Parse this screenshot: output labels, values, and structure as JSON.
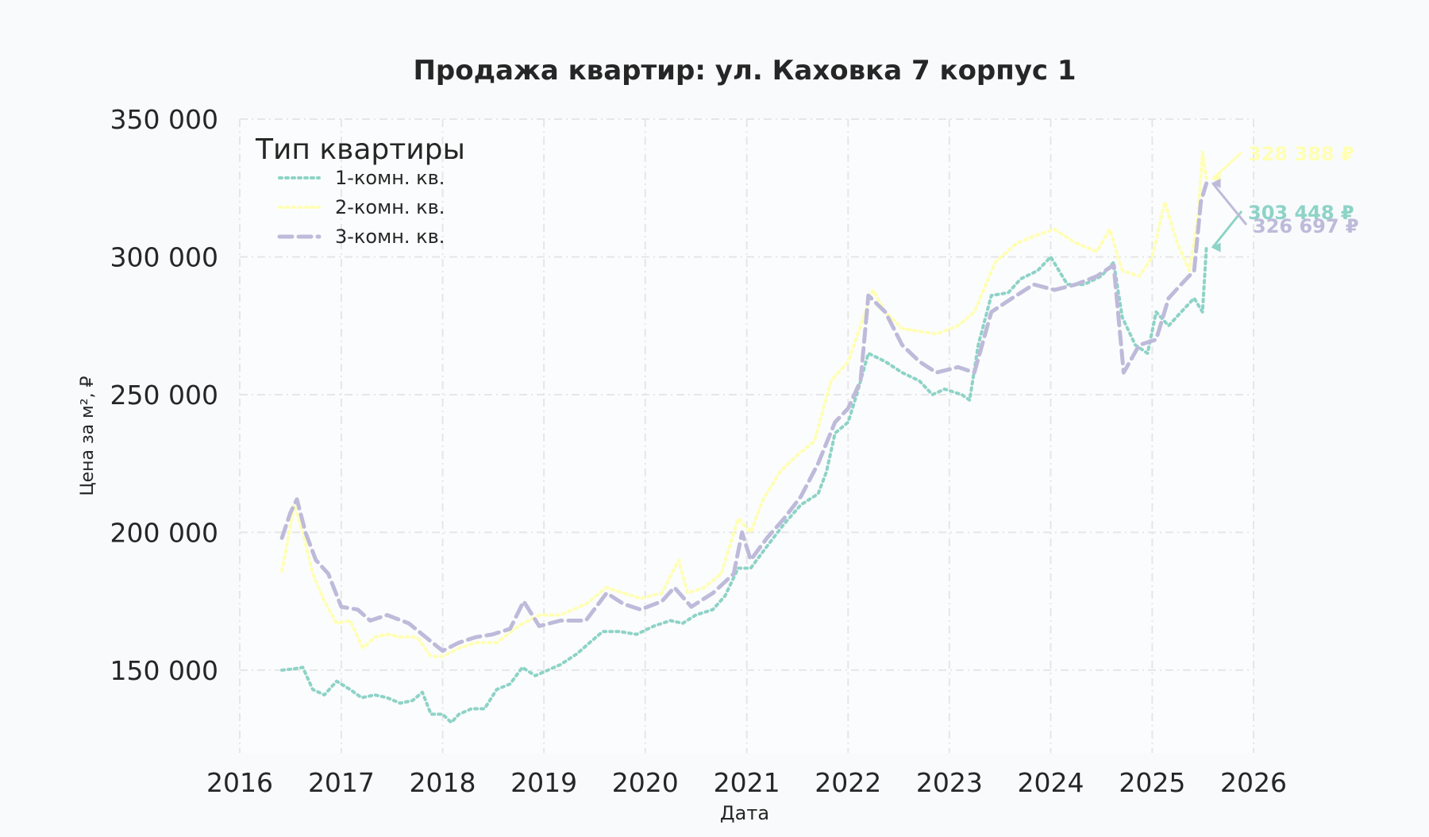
{
  "chart_data": {
    "type": "line",
    "title": "Продажа квартир: ул. Каховка 7 корпус 1",
    "xlabel": "Дата",
    "ylabel": "Цена за м², ₽",
    "xlim": [
      "2016-01-01",
      "2026-01-01"
    ],
    "ylim": [
      120000,
      350000
    ],
    "x_ticks": [
      "2016",
      "2017",
      "2018",
      "2019",
      "2020",
      "2021",
      "2022",
      "2023",
      "2024",
      "2025",
      "2026"
    ],
    "y_ticks": [
      150000,
      200000,
      250000,
      300000,
      350000
    ],
    "y_tick_labels": [
      "150 000",
      "200 000",
      "250 000",
      "300 000",
      "350 000"
    ],
    "grid": true,
    "legend": {
      "title": "Тип квартиры",
      "placement": "top-left"
    },
    "series": [
      {
        "name": "1-комн. кв.",
        "color": "#8dd3c7",
        "dash": "dotted",
        "end_label": "303 448 ₽",
        "points": [
          [
            "2016-06-01",
            150000
          ],
          [
            "2016-07-15",
            150500
          ],
          [
            "2016-08-15",
            151000
          ],
          [
            "2016-09-20",
            143000
          ],
          [
            "2016-11-01",
            141000
          ],
          [
            "2016-12-15",
            146000
          ],
          [
            "2017-02-01",
            143000
          ],
          [
            "2017-03-15",
            140000
          ],
          [
            "2017-05-01",
            141000
          ],
          [
            "2017-06-15",
            140000
          ],
          [
            "2017-08-01",
            138000
          ],
          [
            "2017-09-15",
            139000
          ],
          [
            "2017-10-20",
            142000
          ],
          [
            "2017-11-20",
            134000
          ],
          [
            "2018-01-01",
            134000
          ],
          [
            "2018-02-01",
            131000
          ],
          [
            "2018-03-01",
            134000
          ],
          [
            "2018-04-15",
            136000
          ],
          [
            "2018-06-01",
            136000
          ],
          [
            "2018-07-15",
            143000
          ],
          [
            "2018-09-01",
            145000
          ],
          [
            "2018-10-15",
            151000
          ],
          [
            "2018-12-01",
            148000
          ],
          [
            "2019-01-15",
            150000
          ],
          [
            "2019-03-01",
            152000
          ],
          [
            "2019-05-01",
            156000
          ],
          [
            "2019-06-15",
            160000
          ],
          [
            "2019-08-01",
            164000
          ],
          [
            "2019-10-01",
            164000
          ],
          [
            "2019-12-01",
            163000
          ],
          [
            "2020-02-01",
            166000
          ],
          [
            "2020-04-01",
            168000
          ],
          [
            "2020-05-15",
            167000
          ],
          [
            "2020-07-01",
            170000
          ],
          [
            "2020-09-01",
            172000
          ],
          [
            "2020-10-15",
            177000
          ],
          [
            "2020-12-01",
            187000
          ],
          [
            "2021-01-15",
            187000
          ],
          [
            "2021-03-15",
            195000
          ],
          [
            "2021-05-15",
            203000
          ],
          [
            "2021-07-15",
            210000
          ],
          [
            "2021-09-15",
            214000
          ],
          [
            "2021-10-15",
            222000
          ],
          [
            "2021-11-15",
            236000
          ],
          [
            "2022-01-01",
            240000
          ],
          [
            "2022-02-01",
            250000
          ],
          [
            "2022-03-15",
            265000
          ],
          [
            "2022-05-15",
            262000
          ],
          [
            "2022-07-15",
            258000
          ],
          [
            "2022-09-15",
            255000
          ],
          [
            "2022-11-01",
            250000
          ],
          [
            "2022-12-15",
            252000
          ],
          [
            "2023-02-15",
            250000
          ],
          [
            "2023-03-15",
            248000
          ],
          [
            "2023-04-15",
            268000
          ],
          [
            "2023-06-01",
            286000
          ],
          [
            "2023-08-01",
            287000
          ],
          [
            "2023-09-15",
            292000
          ],
          [
            "2023-11-15",
            295000
          ],
          [
            "2024-01-01",
            300000
          ],
          [
            "2024-03-01",
            290000
          ],
          [
            "2024-05-01",
            290000
          ],
          [
            "2024-07-01",
            293000
          ],
          [
            "2024-08-15",
            298000
          ],
          [
            "2024-09-15",
            278000
          ],
          [
            "2024-11-01",
            268000
          ],
          [
            "2024-12-15",
            265000
          ],
          [
            "2025-01-15",
            280000
          ],
          [
            "2025-03-01",
            275000
          ],
          [
            "2025-04-15",
            280000
          ],
          [
            "2025-06-01",
            285000
          ],
          [
            "2025-07-01",
            280000
          ],
          [
            "2025-07-15",
            303448
          ]
        ]
      },
      {
        "name": "2-комн. кв.",
        "color": "#ffffb3",
        "dash": "dotted",
        "end_label": "328 388 ₽",
        "points": [
          [
            "2016-06-01",
            186000
          ],
          [
            "2016-06-20",
            196000
          ],
          [
            "2016-07-15",
            210000
          ],
          [
            "2016-08-15",
            200000
          ],
          [
            "2016-09-20",
            185000
          ],
          [
            "2016-11-01",
            175000
          ],
          [
            "2016-12-15",
            167000
          ],
          [
            "2017-02-01",
            168000
          ],
          [
            "2017-03-20",
            158000
          ],
          [
            "2017-05-01",
            162000
          ],
          [
            "2017-06-15",
            163000
          ],
          [
            "2017-08-01",
            162000
          ],
          [
            "2017-10-01",
            162000
          ],
          [
            "2017-11-20",
            155000
          ],
          [
            "2018-01-01",
            155000
          ],
          [
            "2018-03-01",
            158000
          ],
          [
            "2018-05-01",
            160000
          ],
          [
            "2018-07-15",
            160000
          ],
          [
            "2018-10-01",
            166000
          ],
          [
            "2018-12-15",
            170000
          ],
          [
            "2019-03-01",
            170000
          ],
          [
            "2019-06-01",
            174000
          ],
          [
            "2019-08-15",
            180000
          ],
          [
            "2019-10-15",
            178000
          ],
          [
            "2019-12-15",
            176000
          ],
          [
            "2020-03-01",
            178000
          ],
          [
            "2020-05-01",
            190000
          ],
          [
            "2020-06-01",
            178000
          ],
          [
            "2020-08-01",
            180000
          ],
          [
            "2020-10-01",
            185000
          ],
          [
            "2020-12-01",
            205000
          ],
          [
            "2021-01-15",
            200000
          ],
          [
            "2021-03-01",
            212000
          ],
          [
            "2021-05-01",
            222000
          ],
          [
            "2021-07-01",
            228000
          ],
          [
            "2021-09-01",
            233000
          ],
          [
            "2021-11-01",
            255000
          ],
          [
            "2022-01-01",
            262000
          ],
          [
            "2022-02-15",
            275000
          ],
          [
            "2022-04-01",
            288000
          ],
          [
            "2022-05-15",
            280000
          ],
          [
            "2022-07-15",
            274000
          ],
          [
            "2022-09-15",
            273000
          ],
          [
            "2022-11-15",
            272000
          ],
          [
            "2023-02-01",
            275000
          ],
          [
            "2023-04-01",
            280000
          ],
          [
            "2023-06-15",
            298000
          ],
          [
            "2023-09-01",
            305000
          ],
          [
            "2023-11-15",
            308000
          ],
          [
            "2024-01-15",
            310000
          ],
          [
            "2024-04-01",
            305000
          ],
          [
            "2024-06-15",
            302000
          ],
          [
            "2024-08-01",
            310000
          ],
          [
            "2024-09-15",
            295000
          ],
          [
            "2024-11-15",
            293000
          ],
          [
            "2025-01-01",
            300000
          ],
          [
            "2025-02-15",
            320000
          ],
          [
            "2025-04-01",
            305000
          ],
          [
            "2025-05-15",
            295000
          ],
          [
            "2025-06-15",
            315000
          ],
          [
            "2025-07-01",
            338000
          ],
          [
            "2025-07-15",
            328388
          ]
        ]
      },
      {
        "name": "3-комн. кв.",
        "color": "#bebada",
        "dash": "dashed",
        "end_label": "326 697 ₽",
        "points": [
          [
            "2016-06-01",
            198000
          ],
          [
            "2016-07-01",
            207000
          ],
          [
            "2016-07-25",
            212000
          ],
          [
            "2016-08-25",
            200000
          ],
          [
            "2016-10-01",
            190000
          ],
          [
            "2016-11-15",
            185000
          ],
          [
            "2017-01-01",
            173000
          ],
          [
            "2017-03-01",
            172000
          ],
          [
            "2017-04-15",
            168000
          ],
          [
            "2017-06-15",
            170000
          ],
          [
            "2017-09-01",
            167000
          ],
          [
            "2017-11-01",
            162000
          ],
          [
            "2018-01-01",
            157000
          ],
          [
            "2018-03-01",
            160000
          ],
          [
            "2018-05-01",
            162000
          ],
          [
            "2018-07-01",
            163000
          ],
          [
            "2018-09-01",
            165000
          ],
          [
            "2018-10-20",
            175000
          ],
          [
            "2018-12-15",
            166000
          ],
          [
            "2019-03-01",
            168000
          ],
          [
            "2019-06-01",
            168000
          ],
          [
            "2019-08-15",
            178000
          ],
          [
            "2019-10-15",
            174000
          ],
          [
            "2019-12-15",
            172000
          ],
          [
            "2020-03-01",
            175000
          ],
          [
            "2020-04-15",
            180000
          ],
          [
            "2020-06-15",
            173000
          ],
          [
            "2020-09-01",
            178000
          ],
          [
            "2020-11-15",
            185000
          ],
          [
            "2020-12-15",
            200000
          ],
          [
            "2021-01-15",
            190000
          ],
          [
            "2021-03-15",
            198000
          ],
          [
            "2021-05-15",
            205000
          ],
          [
            "2021-07-15",
            213000
          ],
          [
            "2021-09-15",
            225000
          ],
          [
            "2021-11-15",
            240000
          ],
          [
            "2022-01-01",
            245000
          ],
          [
            "2022-02-15",
            255000
          ],
          [
            "2022-03-15",
            286000
          ],
          [
            "2022-05-15",
            280000
          ],
          [
            "2022-07-15",
            268000
          ],
          [
            "2022-09-15",
            262000
          ],
          [
            "2022-11-15",
            258000
          ],
          [
            "2023-02-01",
            260000
          ],
          [
            "2023-04-01",
            258000
          ],
          [
            "2023-06-01",
            280000
          ],
          [
            "2023-08-15",
            285000
          ],
          [
            "2023-11-01",
            290000
          ],
          [
            "2024-01-15",
            288000
          ],
          [
            "2024-04-01",
            290000
          ],
          [
            "2024-06-15",
            293000
          ],
          [
            "2024-08-15",
            297000
          ],
          [
            "2024-09-20",
            258000
          ],
          [
            "2024-11-15",
            268000
          ],
          [
            "2025-01-15",
            270000
          ],
          [
            "2025-03-01",
            285000
          ],
          [
            "2025-04-15",
            290000
          ],
          [
            "2025-06-01",
            295000
          ],
          [
            "2025-06-25",
            320000
          ],
          [
            "2025-07-15",
            326697
          ]
        ]
      }
    ]
  }
}
